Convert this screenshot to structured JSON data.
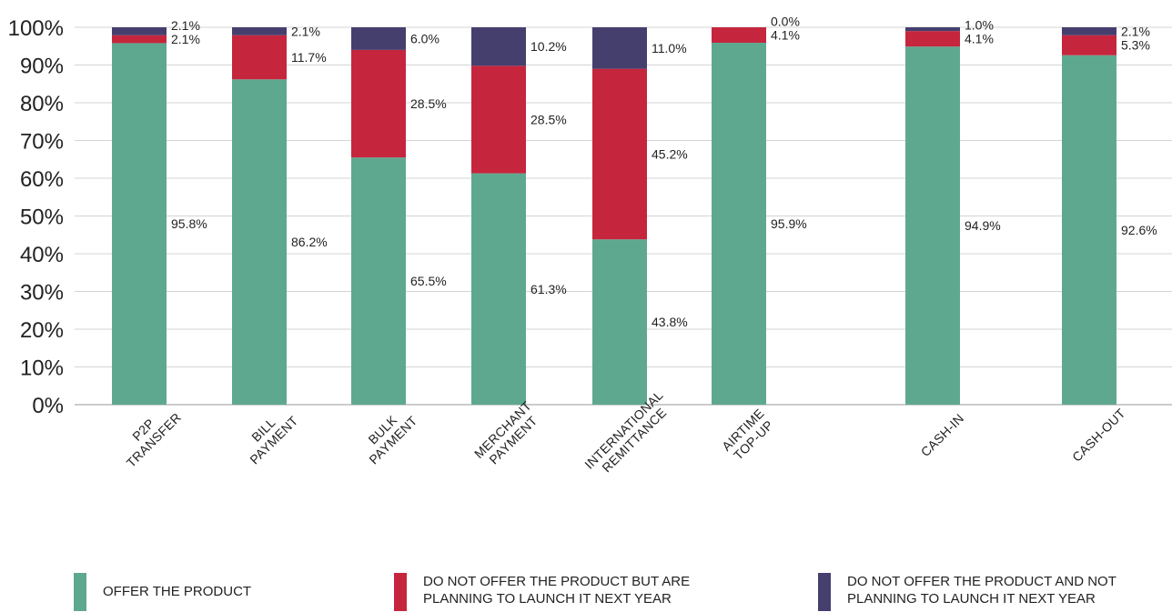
{
  "chart_data": {
    "type": "bar",
    "stacked": true,
    "categories": [
      [
        "P2P",
        "TRANSFER"
      ],
      [
        "BILL",
        "PAYMENT"
      ],
      [
        "BULK",
        "PAYMENT"
      ],
      [
        "MERCHANT",
        "PAYMENT"
      ],
      [
        "INTERNATIONAL",
        "REMITTANCE"
      ],
      [
        "AIRTIME",
        "TOP-UP"
      ],
      [
        "CASH-IN"
      ],
      [
        "CASH-OUT"
      ]
    ],
    "series": [
      {
        "name": "OFFER THE PRODUCT",
        "color": "#5fa890",
        "values": [
          95.8,
          86.2,
          65.5,
          61.3,
          43.8,
          95.9,
          94.9,
          92.6
        ],
        "labels": [
          "95.8%",
          "86.2%",
          "65.5%",
          "61.3%",
          "43.8%",
          "95.9%",
          "94.9%",
          "92.6%"
        ]
      },
      {
        "name": "DO NOT OFFER THE PRODUCT BUT ARE PLANNING TO LAUNCH IT NEXT YEAR",
        "color": "#c5263d",
        "values": [
          2.1,
          11.7,
          28.5,
          28.5,
          45.2,
          4.1,
          4.1,
          5.3
        ],
        "labels": [
          "2.1%",
          "11.7%",
          "28.5%",
          "28.5%",
          "45.2%",
          "4.1%",
          "4.1%",
          "5.3%"
        ]
      },
      {
        "name": "DO NOT OFFER THE PRODUCT AND NOT PLANNING TO LAUNCH IT NEXT YEAR",
        "color": "#453f6e",
        "values": [
          2.1,
          2.1,
          6.0,
          10.2,
          11.0,
          0.0,
          1.0,
          2.1
        ],
        "labels": [
          "2.1%",
          "2.1%",
          "6.0%",
          "10.2%",
          "11.0%",
          "0.0%",
          "1.0%",
          "2.1%"
        ]
      }
    ],
    "yticks": [
      "0%",
      "10%",
      "20%",
      "30%",
      "40%",
      "50%",
      "60%",
      "70%",
      "80%",
      "90%",
      "100%"
    ],
    "ylim": [
      0,
      100
    ],
    "grid": true,
    "legend_position": "bottom",
    "legend": [
      {
        "lines": [
          "OFFER THE PRODUCT"
        ]
      },
      {
        "lines": [
          "DO NOT OFFER THE PRODUCT BUT ARE",
          "PLANNING TO LAUNCH IT NEXT YEAR"
        ]
      },
      {
        "lines": [
          "DO NOT OFFER THE PRODUCT AND NOT",
          "PLANNING TO LAUNCH IT NEXT YEAR"
        ]
      }
    ]
  }
}
